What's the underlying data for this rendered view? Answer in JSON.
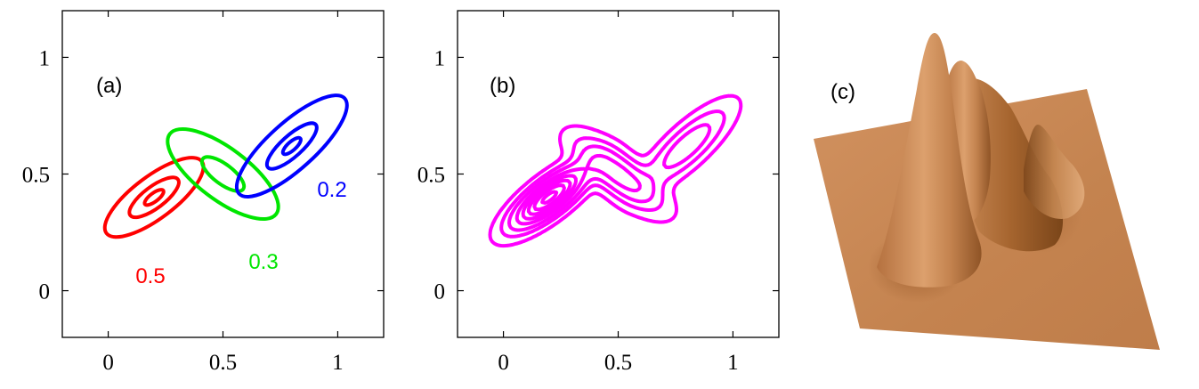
{
  "chart_data": [
    {
      "panel": "a",
      "type": "contour",
      "panel_label": "(a)",
      "xlim": [
        -0.2,
        1.2
      ],
      "ylim": [
        -0.2,
        1.2
      ],
      "xticks": [
        0,
        0.5,
        1
      ],
      "yticks": [
        0,
        0.5,
        1
      ],
      "xtick_labels": [
        "0",
        "0.5",
        "1"
      ],
      "ytick_labels": [
        "0",
        "0.5",
        "1"
      ],
      "components": [
        {
          "label": "0.5",
          "color": "#ff0000",
          "center": [
            0.2,
            0.4
          ],
          "angle_deg": 37,
          "contours": [
            [
              0.26,
              0.09
            ],
            [
              0.13,
              0.046
            ],
            [
              0.05,
              0.018
            ]
          ]
        },
        {
          "label": "0.3",
          "color": "#00e600",
          "center": [
            0.5,
            0.5
          ],
          "angle_deg": -37,
          "contours": [
            [
              0.29,
              0.11
            ],
            [
              0.11,
              0.042
            ]
          ]
        },
        {
          "label": "0.2",
          "color": "#0000ff",
          "center": [
            0.8,
            0.62
          ],
          "angle_deg": 42,
          "contours": [
            [
              0.31,
              0.1
            ],
            [
              0.14,
              0.045
            ],
            [
              0.05,
              0.018
            ]
          ]
        }
      ]
    },
    {
      "panel": "b",
      "type": "contour",
      "panel_label": "(b)",
      "color": "#ff00ff",
      "xlim": [
        -0.2,
        1.2
      ],
      "ylim": [
        -0.2,
        1.2
      ],
      "xticks": [
        0,
        0.5,
        1
      ],
      "yticks": [
        0,
        0.5,
        1
      ],
      "xtick_labels": [
        "0",
        "0.5",
        "1"
      ],
      "ytick_labels": [
        "0",
        "0.5",
        "1"
      ],
      "levels": [
        0.03,
        0.1,
        0.2,
        0.35,
        0.5,
        0.65,
        0.8,
        0.95
      ]
    },
    {
      "panel": "c",
      "type": "surface",
      "panel_label": "(c)",
      "color": "#c88a5a"
    }
  ]
}
